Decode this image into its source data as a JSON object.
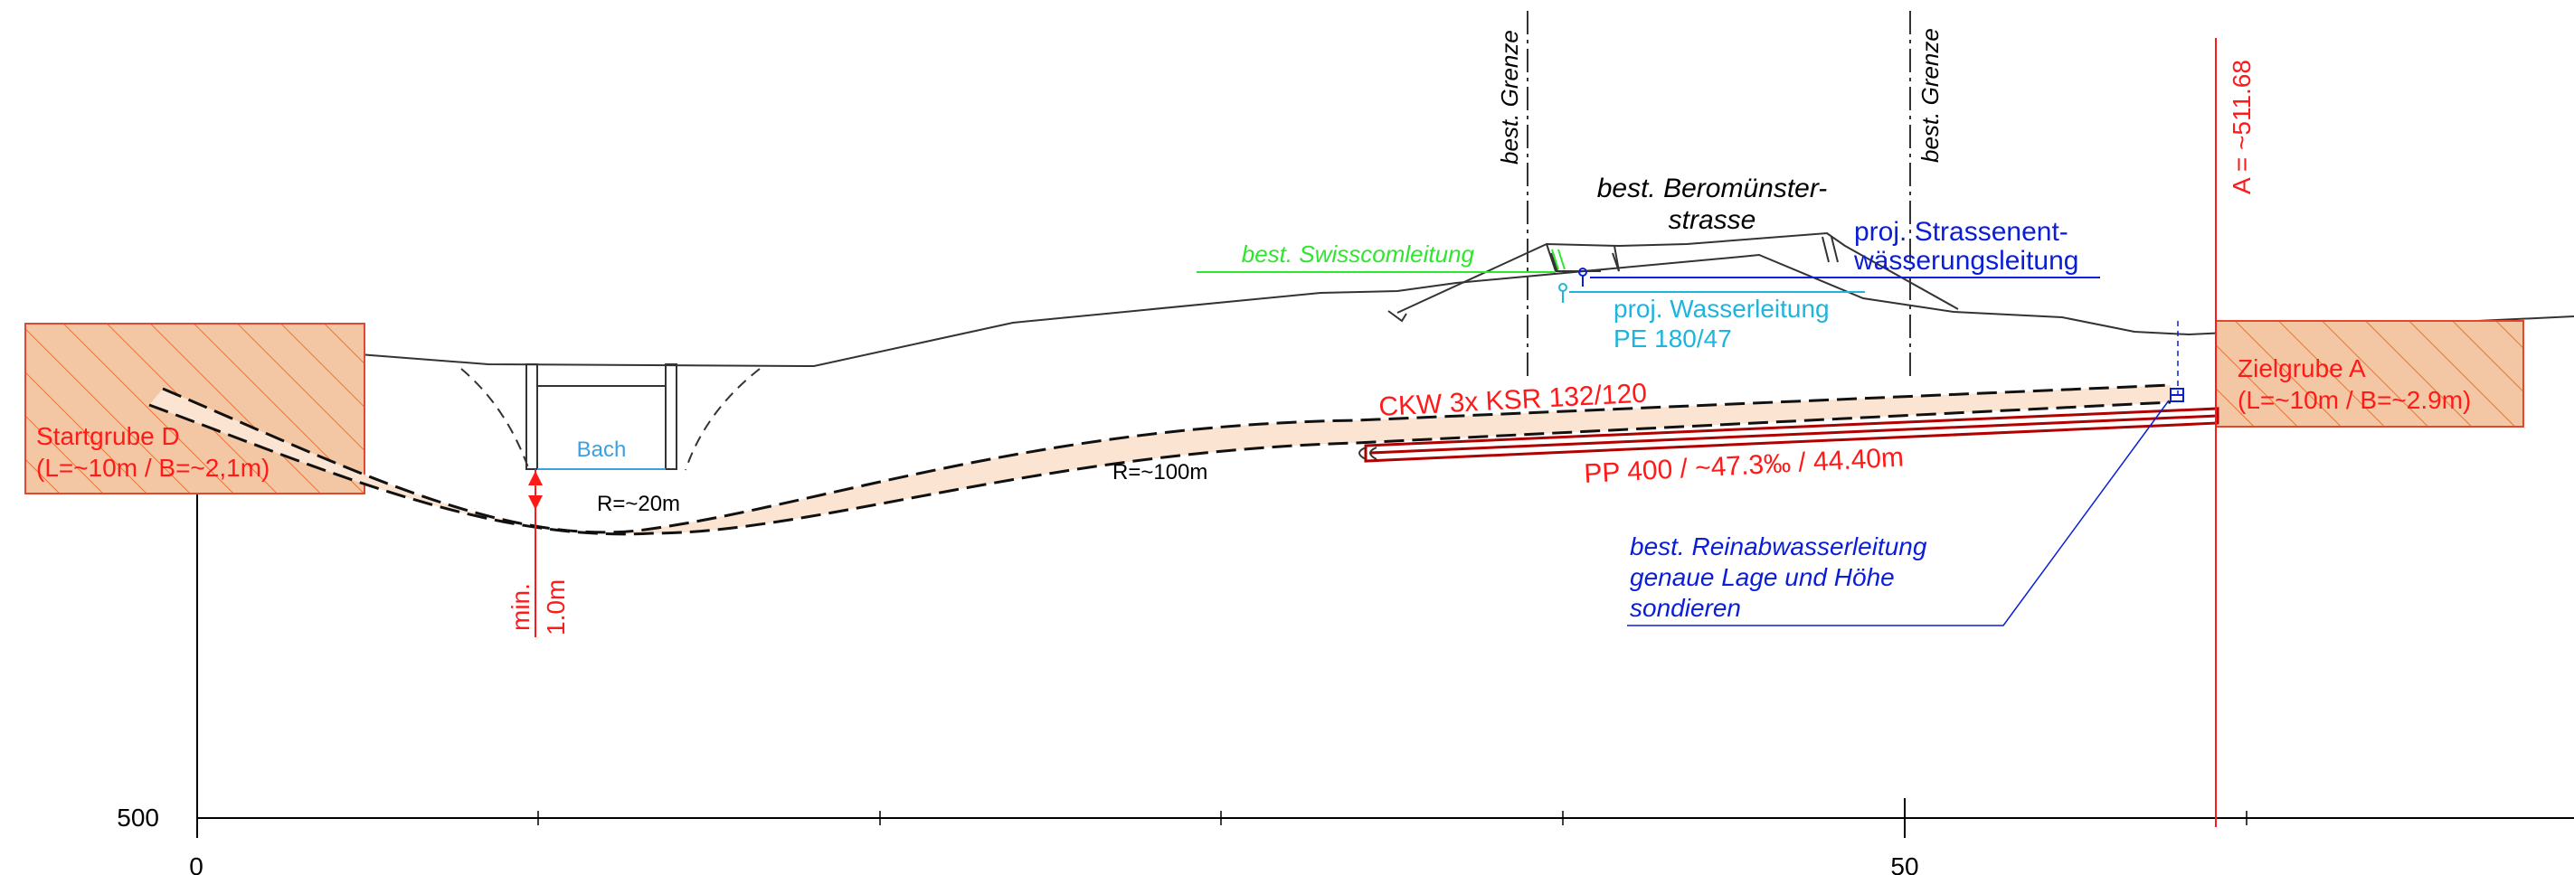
{
  "colors": {
    "red": "#ff1a1a",
    "dark_red": "#b00000",
    "blue": "#0a1ed6",
    "cyan": "#1fb4dc",
    "green": "#2ee62e",
    "bach": "#3b9fe0",
    "hatch": "#e8a070",
    "pit_fill": "#f3c7a3",
    "bore_fill": "#fbe4d2",
    "ink": "#000000"
  },
  "labels": {
    "startgrube_line1": "Startgrube D",
    "startgrube_line2": "(L=~10m / B=~2,1m)",
    "zielgrube_line1": "Zielgrube A",
    "zielgrube_line2": "(L=~10m / B=~2.9m)",
    "bach": "Bach",
    "radius_small": "R=~20m",
    "radius_large": "R=~100m",
    "min_cover_line1": "min.",
    "min_cover_line2": "1.0m",
    "ckw": "CKW 3x KSR 132/120",
    "pp_pipe": "PP 400 / ~47.3‰ / 44.40m",
    "grenze_left": "best. Grenze",
    "grenze_right": "best. Grenze",
    "strasse_line1": "best. Beromünster-",
    "strasse_line2": "strasse",
    "swisscom": "best. Swisscomleitung",
    "strassenent_line1": "proj. Strassenent-",
    "strassenent_line2": "wässerungsleitung",
    "wasser_line1": "proj. Wasserleitung",
    "wasser_line2": "PE 180/47",
    "reinab_line1": "best. Reinabwasserleitung",
    "reinab_line2": "genaue Lage und Höhe",
    "reinab_line3": "sondieren",
    "station_a": "A = ~511.68"
  },
  "axes": {
    "x_ticks": [
      "0",
      "50"
    ],
    "y_tick": "500"
  }
}
